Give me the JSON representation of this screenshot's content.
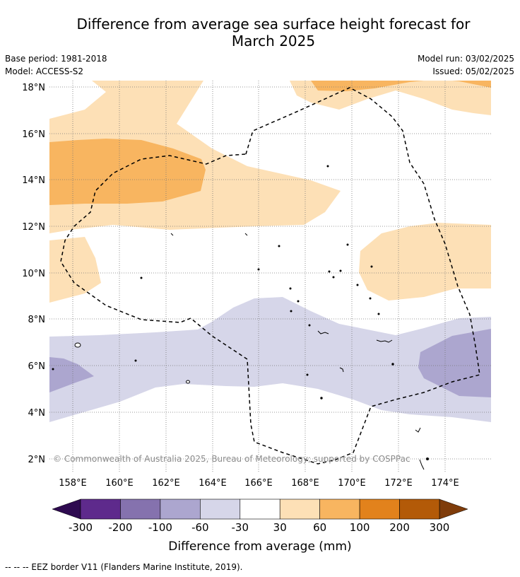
{
  "title_line1": "Difference from average sea surface height forecast for",
  "title_line2": "March 2025",
  "base_period": "Base period: 1981-2018",
  "model": "Model: ACCESS-S2",
  "model_run": "Model run: 03/02/2025",
  "issued": "Issued: 05/02/2025",
  "copyright": "© Commonwealth of Australia 2025, Bureau of Meteorology; supported by COSPPac",
  "colorbar_label": "Difference from average (mm)",
  "footnote": "--  --  -- EEZ border V11 (Flanders Marine Institute, 2019).",
  "map": {
    "lon_range": [
      157,
      176
    ],
    "lat_range": [
      1.5,
      18.3
    ],
    "lat_ticks": [
      {
        "value": 18,
        "label": "18°N"
      },
      {
        "value": 16,
        "label": "16°N"
      },
      {
        "value": 14,
        "label": "14°N"
      },
      {
        "value": 12,
        "label": "12°N"
      },
      {
        "value": 10,
        "label": "10°N"
      },
      {
        "value": 8,
        "label": "8°N"
      },
      {
        "value": 6,
        "label": "6°N"
      },
      {
        "value": 4,
        "label": "4°N"
      },
      {
        "value": 2,
        "label": "2°N"
      }
    ],
    "lon_ticks": [
      {
        "value": 158,
        "label": "158°E"
      },
      {
        "value": 160,
        "label": "160°E"
      },
      {
        "value": 162,
        "label": "162°E"
      },
      {
        "value": 164,
        "label": "164°E"
      },
      {
        "value": 166,
        "label": "166°E"
      },
      {
        "value": 168,
        "label": "168°E"
      },
      {
        "value": 170,
        "label": "170°E"
      },
      {
        "value": 172,
        "label": "172°E"
      },
      {
        "value": 174,
        "label": "174°E"
      }
    ]
  },
  "colorbar": {
    "labels": [
      "-300",
      "-200",
      "-100",
      "-60",
      "-30",
      "30",
      "60",
      "100",
      "200",
      "300"
    ],
    "colors": [
      "#5e2a8c",
      "#8572ae",
      "#aca6cf",
      "#d6d6e9",
      "#ffffff",
      "#fde0b6",
      "#f8b560",
      "#e2821c",
      "#b35a08"
    ],
    "under_color": "#2e0a50",
    "over_color": "#7f3c0a"
  }
}
